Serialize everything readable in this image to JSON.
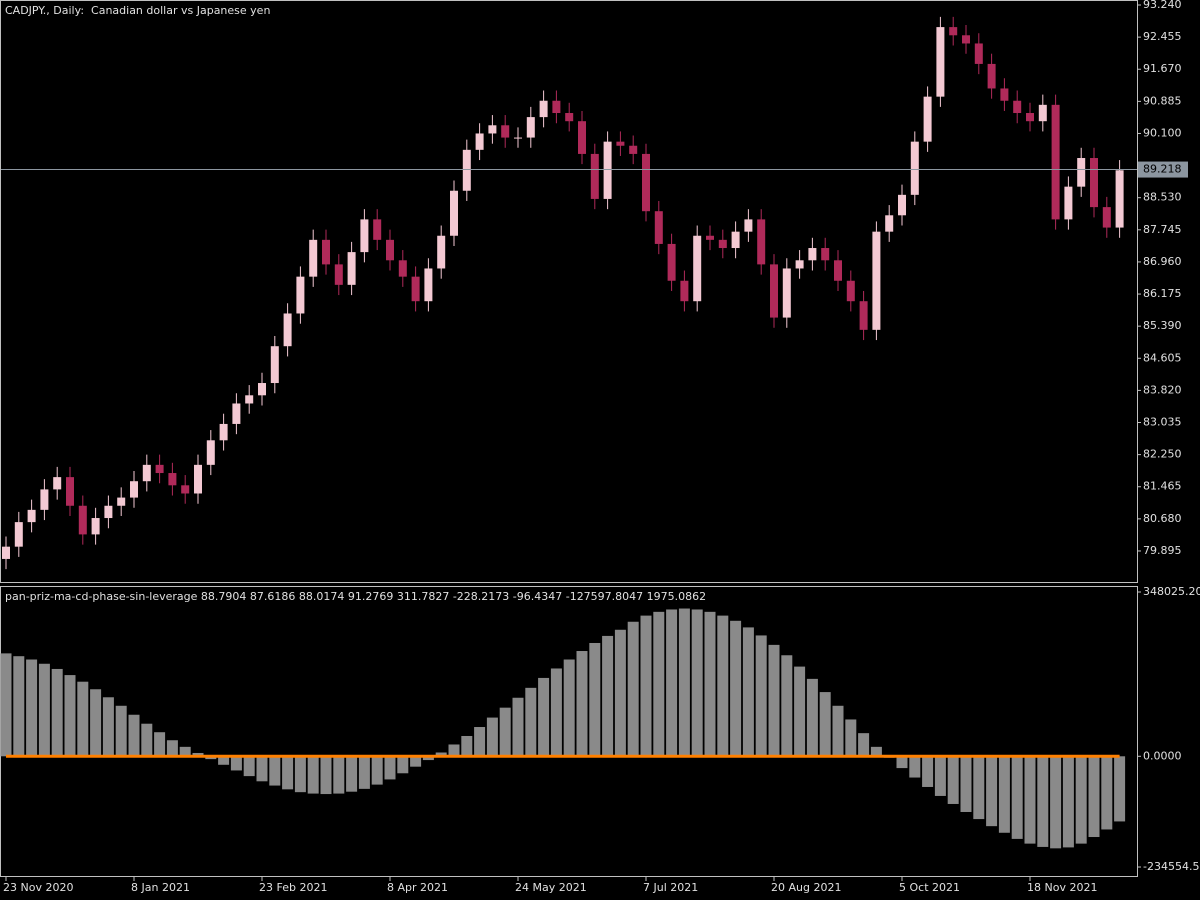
{
  "chart_data": [
    {
      "type": "candlestick",
      "title": "CADJPY., Daily:  Canadian dollar vs Japanese yen",
      "categories": [
        "23 Nov 2020",
        null,
        null,
        null,
        null,
        null,
        null,
        null,
        null,
        null,
        "8 Jan 2021",
        null,
        null,
        null,
        null,
        null,
        null,
        null,
        null,
        null,
        "23 Feb 2021",
        null,
        null,
        null,
        null,
        null,
        null,
        null,
        null,
        null,
        "8 Apr 2021",
        null,
        null,
        null,
        null,
        null,
        null,
        null,
        null,
        null,
        "24 May 2021",
        null,
        null,
        null,
        null,
        null,
        null,
        null,
        null,
        null,
        "7 Jul 2021",
        null,
        null,
        null,
        null,
        null,
        null,
        null,
        null,
        null,
        "20 Aug 2021",
        null,
        null,
        null,
        null,
        null,
        null,
        null,
        null,
        null,
        "5 Oct 2021",
        null,
        null,
        null,
        null,
        null,
        null,
        null,
        null,
        null,
        "18 Nov 2021",
        null,
        null,
        null,
        null,
        null,
        null,
        null
      ],
      "open": [
        79.7,
        80.0,
        80.6,
        80.9,
        81.4,
        81.7,
        81.0,
        80.3,
        80.7,
        81.0,
        81.2,
        81.6,
        82.0,
        81.8,
        81.5,
        81.3,
        82.0,
        82.6,
        83.0,
        83.5,
        83.7,
        84.0,
        84.9,
        85.7,
        86.6,
        87.5,
        86.9,
        86.4,
        87.2,
        88.0,
        87.5,
        87.0,
        86.6,
        86.0,
        86.8,
        87.6,
        88.7,
        89.7,
        90.1,
        90.3,
        90.0,
        90.0,
        90.5,
        90.9,
        90.6,
        90.4,
        89.6,
        88.5,
        89.9,
        89.8,
        89.6,
        88.2,
        87.4,
        86.5,
        86.0,
        87.6,
        87.5,
        87.3,
        87.7,
        88.0,
        86.9,
        85.6,
        86.8,
        87.0,
        87.3,
        87.0,
        86.5,
        86.0,
        85.3,
        87.7,
        88.1,
        88.6,
        89.9,
        91.0,
        92.7,
        92.5,
        92.3,
        91.8,
        91.2,
        90.9,
        90.6,
        90.4,
        90.8,
        88.0,
        88.8,
        89.5,
        88.3,
        87.8
      ],
      "high": [
        80.25,
        80.85,
        81.15,
        81.65,
        81.95,
        81.95,
        81.25,
        80.95,
        81.25,
        81.45,
        81.85,
        82.25,
        82.25,
        82.05,
        81.75,
        82.25,
        82.85,
        83.25,
        83.75,
        83.95,
        84.25,
        85.15,
        85.95,
        86.85,
        87.75,
        87.75,
        87.15,
        87.45,
        88.25,
        88.25,
        87.75,
        87.25,
        86.85,
        87.05,
        87.85,
        88.95,
        89.95,
        90.35,
        90.55,
        90.55,
        90.25,
        90.75,
        91.15,
        91.15,
        90.85,
        90.65,
        89.85,
        90.15,
        90.15,
        90.05,
        89.85,
        88.45,
        87.65,
        86.75,
        87.85,
        87.85,
        87.75,
        87.95,
        88.25,
        88.25,
        87.15,
        87.05,
        87.25,
        87.55,
        87.55,
        87.25,
        86.75,
        86.25,
        87.95,
        88.35,
        88.85,
        90.15,
        91.25,
        92.95,
        92.95,
        92.75,
        92.55,
        92.05,
        91.45,
        91.15,
        90.85,
        91.05,
        91.05,
        89.05,
        89.75,
        89.75,
        88.55,
        89.45
      ],
      "low": [
        79.45,
        79.75,
        80.35,
        80.65,
        81.15,
        80.75,
        80.05,
        80.05,
        80.45,
        80.75,
        80.95,
        81.35,
        81.55,
        81.25,
        81.05,
        81.05,
        81.75,
        82.35,
        82.75,
        83.25,
        83.45,
        83.75,
        84.65,
        85.45,
        86.35,
        86.65,
        86.15,
        86.15,
        86.95,
        87.25,
        86.75,
        86.35,
        85.75,
        85.75,
        86.55,
        87.35,
        88.45,
        89.45,
        89.85,
        89.75,
        89.75,
        89.75,
        90.25,
        90.35,
        90.15,
        89.35,
        88.25,
        88.25,
        89.55,
        89.35,
        87.95,
        87.15,
        86.25,
        85.75,
        85.75,
        87.25,
        87.05,
        87.05,
        87.45,
        86.65,
        85.35,
        85.35,
        86.55,
        86.75,
        86.75,
        86.25,
        85.75,
        85.05,
        85.05,
        87.45,
        87.85,
        88.35,
        89.65,
        90.75,
        92.25,
        92.05,
        91.55,
        90.95,
        90.65,
        90.35,
        90.15,
        90.15,
        87.75,
        87.75,
        88.55,
        88.05,
        87.55,
        87.55
      ],
      "close": [
        80.0,
        80.6,
        80.9,
        81.4,
        81.7,
        81.0,
        80.3,
        80.7,
        81.0,
        81.2,
        81.6,
        82.0,
        81.8,
        81.5,
        81.3,
        82.0,
        82.6,
        83.0,
        83.5,
        83.7,
        84.0,
        84.9,
        85.7,
        86.6,
        87.5,
        86.9,
        86.4,
        87.2,
        88.0,
        87.5,
        87.0,
        86.6,
        86.0,
        86.8,
        87.6,
        88.7,
        89.7,
        90.1,
        90.3,
        90.0,
        90.0,
        90.5,
        90.9,
        90.6,
        90.4,
        89.6,
        88.5,
        89.9,
        89.8,
        89.6,
        88.2,
        87.4,
        86.5,
        86.0,
        87.6,
        87.5,
        87.3,
        87.7,
        88.0,
        86.9,
        85.6,
        86.8,
        87.0,
        87.3,
        87.0,
        86.5,
        86.0,
        85.3,
        87.7,
        88.1,
        88.6,
        89.9,
        91.0,
        92.7,
        92.5,
        92.3,
        91.8,
        91.2,
        90.9,
        90.6,
        90.4,
        90.8,
        88.0,
        88.8,
        89.5,
        88.3,
        87.8,
        89.2
      ],
      "up_color": "#f3c9d3",
      "down_color": "#b02a5a",
      "ylim": [
        79.112,
        93.338
      ],
      "yticks": [
        {
          "value": 93.24,
          "label": "93.240"
        },
        92.455,
        {
          "value": 91.67,
          "label": "91.670"
        },
        90.885,
        {
          "value": 90.1,
          "label": "90.100"
        },
        {
          "value": 88.53,
          "label": "88.530"
        },
        87.745,
        {
          "value": 86.96,
          "label": "86.960"
        },
        86.175,
        {
          "value": 85.39,
          "label": "85.390"
        },
        84.605,
        {
          "value": 83.82,
          "label": "83.820"
        },
        83.035,
        {
          "value": 82.25,
          "label": "82.250"
        },
        81.465,
        {
          "value": 80.68,
          "label": "80.680"
        },
        79.895
      ],
      "current_price": 89.218
    },
    {
      "type": "bar",
      "title": "pan-priz-ma-cd-phase-sin-leverage 88.7904 87.6186 88.0174 91.2769 311.7827 -228.2173 -96.4347 -127597.8047 1975.0862",
      "series": [
        {
          "type": "bar",
          "color": "#8a8a8a",
          "values": [
            218000,
            212000,
            205000,
            196000,
            185000,
            172000,
            158000,
            142000,
            125000,
            107000,
            88000,
            69000,
            51000,
            34000,
            20000,
            7000,
            -6000,
            -18000,
            -30000,
            -42000,
            -53000,
            -62000,
            -70000,
            -76000,
            -79000,
            -80000,
            -79000,
            -75000,
            -69000,
            -60000,
            -49000,
            -36000,
            -22000,
            -8000,
            8000,
            25000,
            43000,
            62000,
            82000,
            103000,
            124000,
            145000,
            166000,
            186000,
            205000,
            223000,
            240000,
            255000,
            268000,
            285000,
            298000,
            306000,
            311000,
            313000,
            311000,
            306000,
            298000,
            287000,
            273000,
            256000,
            236000,
            214000,
            190000,
            164000,
            136000,
            107000,
            78000,
            49000,
            20000,
            -3000,
            -25000,
            -45000,
            -65000,
            -84000,
            -101000,
            -118000,
            -133000,
            -148000,
            -162000,
            -175000,
            -185000,
            -192000,
            -195000,
            -193000,
            -185000,
            -171000,
            -155000,
            -138000
          ]
        },
        {
          "type": "line",
          "color": "#ff8000",
          "values": [
            0,
            0,
            0,
            0,
            0,
            0,
            0,
            0,
            0,
            0,
            0,
            0,
            0,
            0,
            0,
            0,
            0,
            0,
            0,
            0,
            0,
            0,
            0,
            0,
            0,
            0,
            0,
            0,
            0,
            0,
            0,
            0,
            0,
            0,
            0,
            0,
            0,
            0,
            0,
            0,
            0,
            0,
            0,
            0,
            0,
            0,
            0,
            0,
            0,
            0,
            0,
            0,
            0,
            0,
            0,
            0,
            0,
            0,
            0,
            0,
            0,
            0,
            0,
            0,
            0,
            0,
            0,
            0,
            0,
            0,
            0,
            0,
            0,
            0,
            0,
            0,
            0,
            0,
            0,
            0,
            0,
            0,
            0,
            0,
            0,
            0,
            0,
            0
          ]
        }
      ],
      "ylim": [
        -255700,
        358600
      ],
      "yticks": [
        {
          "value": 348025.2,
          "label": "348025.20"
        },
        {
          "value": 0,
          "label": "0.0000"
        },
        -234554.5
      ]
    }
  ]
}
